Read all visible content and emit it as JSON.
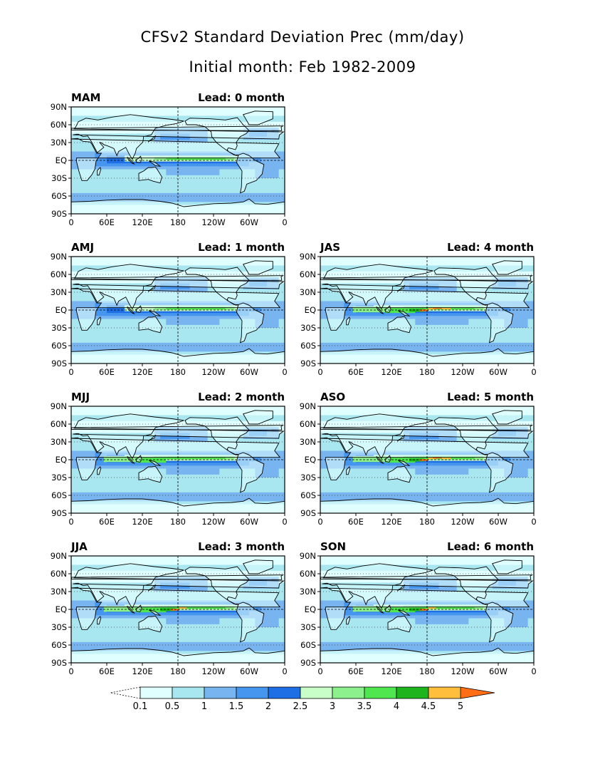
{
  "title": "CFSv2 Standard Deviation Prec (mm/day)",
  "subtitle": "Initial month: Feb 1982-2009",
  "axes": {
    "lat_labels": [
      "90N",
      "60N",
      "30N",
      "EQ",
      "30S",
      "60S",
      "90S"
    ],
    "lon_labels": [
      "0",
      "60E",
      "120E",
      "180",
      "120W",
      "60W",
      "0"
    ]
  },
  "panels": [
    {
      "season": "MAM",
      "lead": "Lead: 0 month"
    },
    {
      "season": "AMJ",
      "lead": "Lead: 1 month"
    },
    {
      "season": "JAS",
      "lead": "Lead: 4 month"
    },
    {
      "season": "MJJ",
      "lead": "Lead: 2 month"
    },
    {
      "season": "ASO",
      "lead": "Lead: 5 month"
    },
    {
      "season": "JJA",
      "lead": "Lead: 3 month"
    },
    {
      "season": "SON",
      "lead": "Lead: 6 month"
    }
  ],
  "colorbar": {
    "labels": [
      "0.1",
      "0.5",
      "1",
      "1.5",
      "2",
      "2.5",
      "3",
      "3.5",
      "4",
      "4.5",
      "5"
    ],
    "colors": [
      "#e0ffff",
      "#a8e6f0",
      "#78b4f0",
      "#4696f0",
      "#1e6ee6",
      "#c8ffc8",
      "#8cf08c",
      "#50e650",
      "#1eb41e",
      "#ffbe3c",
      "#ff6e14"
    ]
  }
}
